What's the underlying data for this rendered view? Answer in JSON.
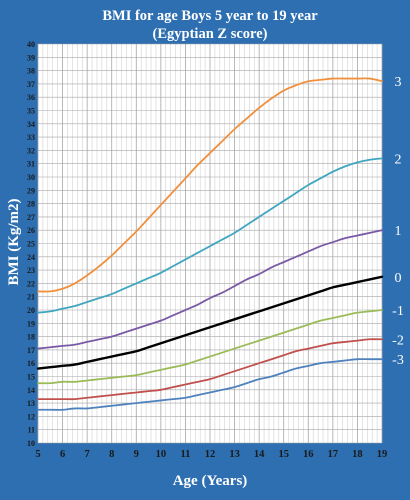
{
  "chart_data": {
    "type": "line",
    "title": "BMI for age Boys 5 year to 19 year",
    "subtitle": "(Egyptian Z score)",
    "xlabel": "Age (Years)",
    "ylabel": "BMI (Kg/m2)",
    "xlim": [
      5,
      19
    ],
    "ylim": [
      10,
      40
    ],
    "xticks": [
      5,
      6,
      7,
      8,
      9,
      10,
      11,
      12,
      13,
      14,
      15,
      16,
      17,
      18,
      19
    ],
    "yticks": [
      10,
      11,
      12,
      13,
      14,
      15,
      16,
      17,
      18,
      19,
      20,
      21,
      22,
      23,
      24,
      25,
      26,
      27,
      28,
      29,
      30,
      31,
      32,
      33,
      34,
      35,
      36,
      37,
      38,
      39,
      40
    ],
    "grid": true,
    "x": [
      5,
      5.5,
      6,
      6.5,
      7,
      7.5,
      8,
      8.5,
      9,
      9.5,
      10,
      10.5,
      11,
      11.5,
      12,
      12.5,
      13,
      13.5,
      14,
      14.5,
      15,
      15.5,
      16,
      16.5,
      17,
      17.5,
      18,
      18.5,
      19
    ],
    "series": [
      {
        "name": "3",
        "color": "#f0903c",
        "values": [
          21.4,
          21.4,
          21.6,
          22.0,
          22.6,
          23.3,
          24.1,
          25.0,
          25.9,
          26.9,
          27.9,
          28.9,
          29.9,
          30.9,
          31.8,
          32.7,
          33.6,
          34.4,
          35.2,
          35.9,
          36.5,
          36.9,
          37.2,
          37.3,
          37.4,
          37.4,
          37.4,
          37.4,
          37.2
        ]
      },
      {
        "name": "2",
        "color": "#3fa6bf",
        "values": [
          19.8,
          19.9,
          20.1,
          20.3,
          20.6,
          20.9,
          21.2,
          21.6,
          22.0,
          22.4,
          22.8,
          23.3,
          23.8,
          24.3,
          24.8,
          25.3,
          25.8,
          26.4,
          27.0,
          27.6,
          28.2,
          28.8,
          29.4,
          29.9,
          30.4,
          30.8,
          31.1,
          31.3,
          31.4
        ]
      },
      {
        "name": "1",
        "color": "#7a5aa6",
        "values": [
          17.1,
          17.2,
          17.3,
          17.4,
          17.6,
          17.8,
          18.0,
          18.3,
          18.6,
          18.9,
          19.2,
          19.6,
          20.0,
          20.4,
          20.9,
          21.3,
          21.8,
          22.3,
          22.7,
          23.2,
          23.6,
          24.0,
          24.4,
          24.8,
          25.1,
          25.4,
          25.6,
          25.8,
          26.0
        ]
      },
      {
        "name": "0",
        "color": "#000000",
        "values": [
          15.6,
          15.7,
          15.8,
          15.9,
          16.1,
          16.3,
          16.5,
          16.7,
          16.9,
          17.2,
          17.5,
          17.8,
          18.1,
          18.4,
          18.7,
          19.0,
          19.3,
          19.6,
          19.9,
          20.2,
          20.5,
          20.8,
          21.1,
          21.4,
          21.7,
          21.9,
          22.1,
          22.3,
          22.5
        ]
      },
      {
        "name": "-1",
        "color": "#9bbb59",
        "values": [
          14.5,
          14.5,
          14.6,
          14.6,
          14.7,
          14.8,
          14.9,
          15.0,
          15.1,
          15.3,
          15.5,
          15.7,
          15.9,
          16.2,
          16.5,
          16.8,
          17.1,
          17.4,
          17.7,
          18.0,
          18.3,
          18.6,
          18.9,
          19.2,
          19.4,
          19.6,
          19.8,
          19.9,
          20.0
        ]
      },
      {
        "name": "-2",
        "color": "#c0504d",
        "values": [
          13.3,
          13.3,
          13.3,
          13.3,
          13.4,
          13.5,
          13.6,
          13.7,
          13.8,
          13.9,
          14.0,
          14.2,
          14.4,
          14.6,
          14.8,
          15.1,
          15.4,
          15.7,
          16.0,
          16.3,
          16.6,
          16.9,
          17.1,
          17.3,
          17.5,
          17.6,
          17.7,
          17.8,
          17.8
        ]
      },
      {
        "name": "-3",
        "color": "#4f81bd",
        "values": [
          12.5,
          12.5,
          12.5,
          12.6,
          12.6,
          12.7,
          12.8,
          12.9,
          13.0,
          13.1,
          13.2,
          13.3,
          13.4,
          13.6,
          13.8,
          14.0,
          14.2,
          14.5,
          14.8,
          15.0,
          15.3,
          15.6,
          15.8,
          16.0,
          16.1,
          16.2,
          16.3,
          16.3,
          16.3
        ]
      }
    ]
  },
  "colors": {
    "background": "#2e6fb1",
    "plot_area": "#ffffff",
    "grid_minor": "#c8c8c8",
    "grid_major": "#a6a6a6",
    "title_text": "#ffffff",
    "tick_text": "#1a1a1a"
  }
}
